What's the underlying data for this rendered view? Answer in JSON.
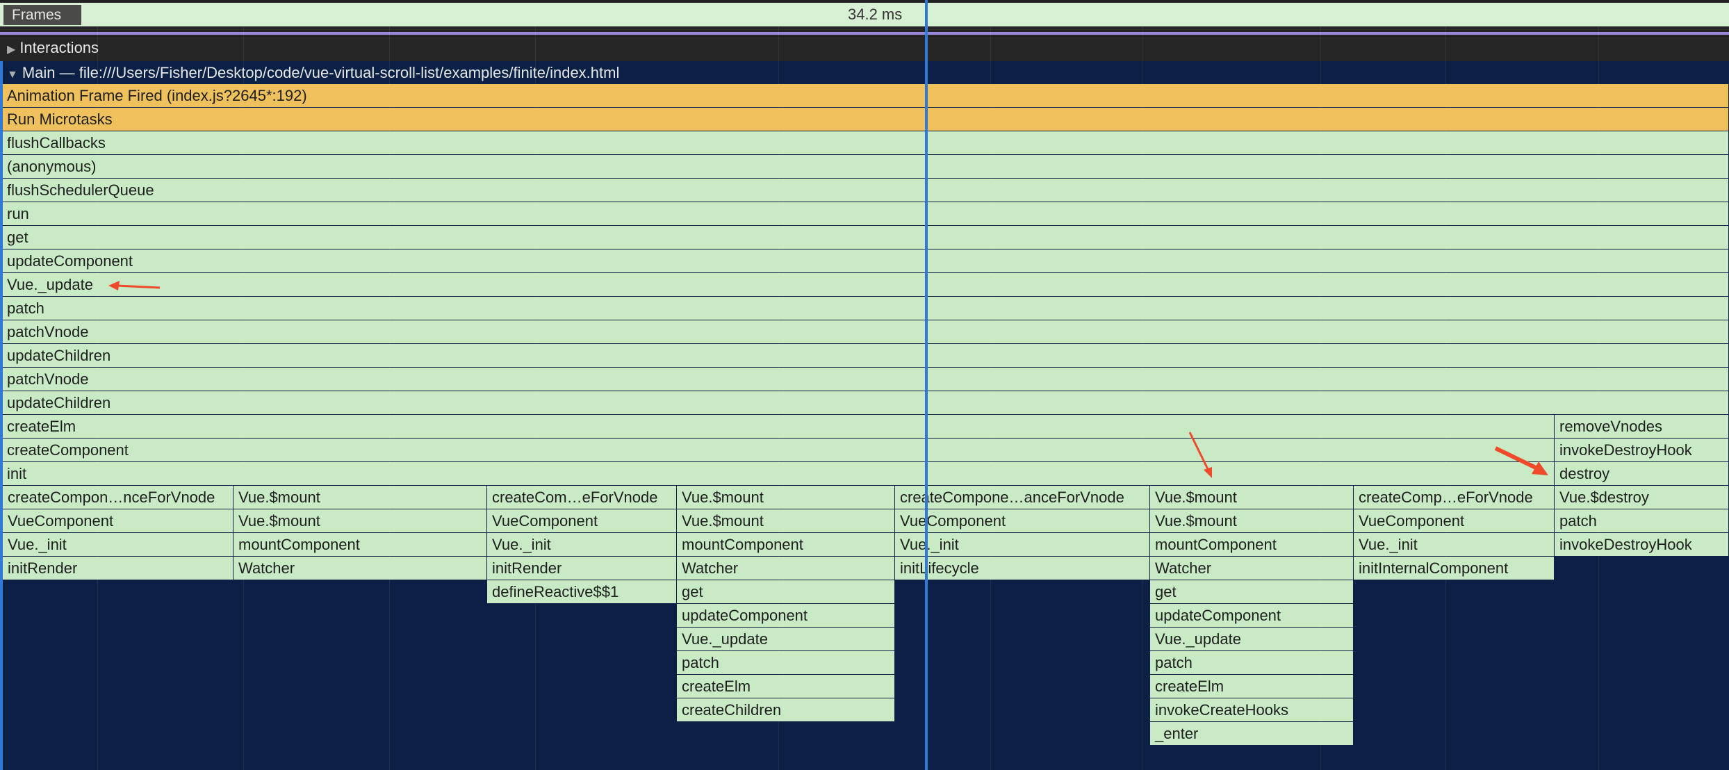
{
  "frames": {
    "label": "Frames",
    "duration": "34.2 ms"
  },
  "interactions": {
    "label": "Interactions",
    "icon": "triangle-right-icon"
  },
  "main": {
    "label": "Main — file:///Users/Fisher/Desktop/code/vue-virtual-scroll-list/examples/finite/index.html",
    "icon": "triangle-down-icon"
  },
  "colors": {
    "scripting": "#c8ebc5",
    "event": "#efc15d",
    "background": "#0a2145",
    "cursor": "#2f7ad8",
    "annotation_arrow": "#f04a2a"
  },
  "rows": [
    [
      "Animation Frame Fired (index.js?2645*:192)"
    ],
    [
      "Run Microtasks"
    ],
    [
      "flushCallbacks"
    ],
    [
      "(anonymous)"
    ],
    [
      "flushSchedulerQueue"
    ],
    [
      "run"
    ],
    [
      "get"
    ],
    [
      "updateComponent"
    ],
    [
      "Vue._update"
    ],
    [
      "patch"
    ],
    [
      "patchVnode"
    ],
    [
      "updateChildren"
    ],
    [
      "patchVnode"
    ],
    [
      "updateChildren"
    ],
    [
      "createElm",
      "removeVnodes"
    ],
    [
      "createComponent",
      "invokeDestroyHook"
    ],
    [
      "init",
      "destroy"
    ],
    [
      "createCompon…nceForVnode",
      "Vue.$mount",
      "createCom…eForVnode",
      "Vue.$mount",
      "createCompone…anceForVnode",
      "Vue.$mount",
      "createComp…eForVnode",
      "Vue.$destroy"
    ],
    [
      "VueComponent",
      "Vue.$mount",
      "VueComponent",
      "Vue.$mount",
      "VueComponent",
      "Vue.$mount",
      "VueComponent",
      "patch"
    ],
    [
      "Vue._init",
      "mountComponent",
      "Vue._init",
      "mountComponent",
      "Vue._init",
      "mountComponent",
      "Vue._init",
      "invokeDestroyHook"
    ],
    [
      "initRender",
      "Watcher",
      "initRender",
      "Watcher",
      "initLifecycle",
      "Watcher",
      "initInternalComponent"
    ],
    [
      "defineReactive$$1",
      "get",
      "get"
    ],
    [
      "updateComponent",
      "updateComponent"
    ],
    [
      "Vue._update",
      "Vue._update"
    ],
    [
      "patch",
      "patch"
    ],
    [
      "createElm",
      "createElm"
    ],
    [
      "createChildren",
      "invokeCreateHooks"
    ],
    [
      "_enter"
    ]
  ]
}
